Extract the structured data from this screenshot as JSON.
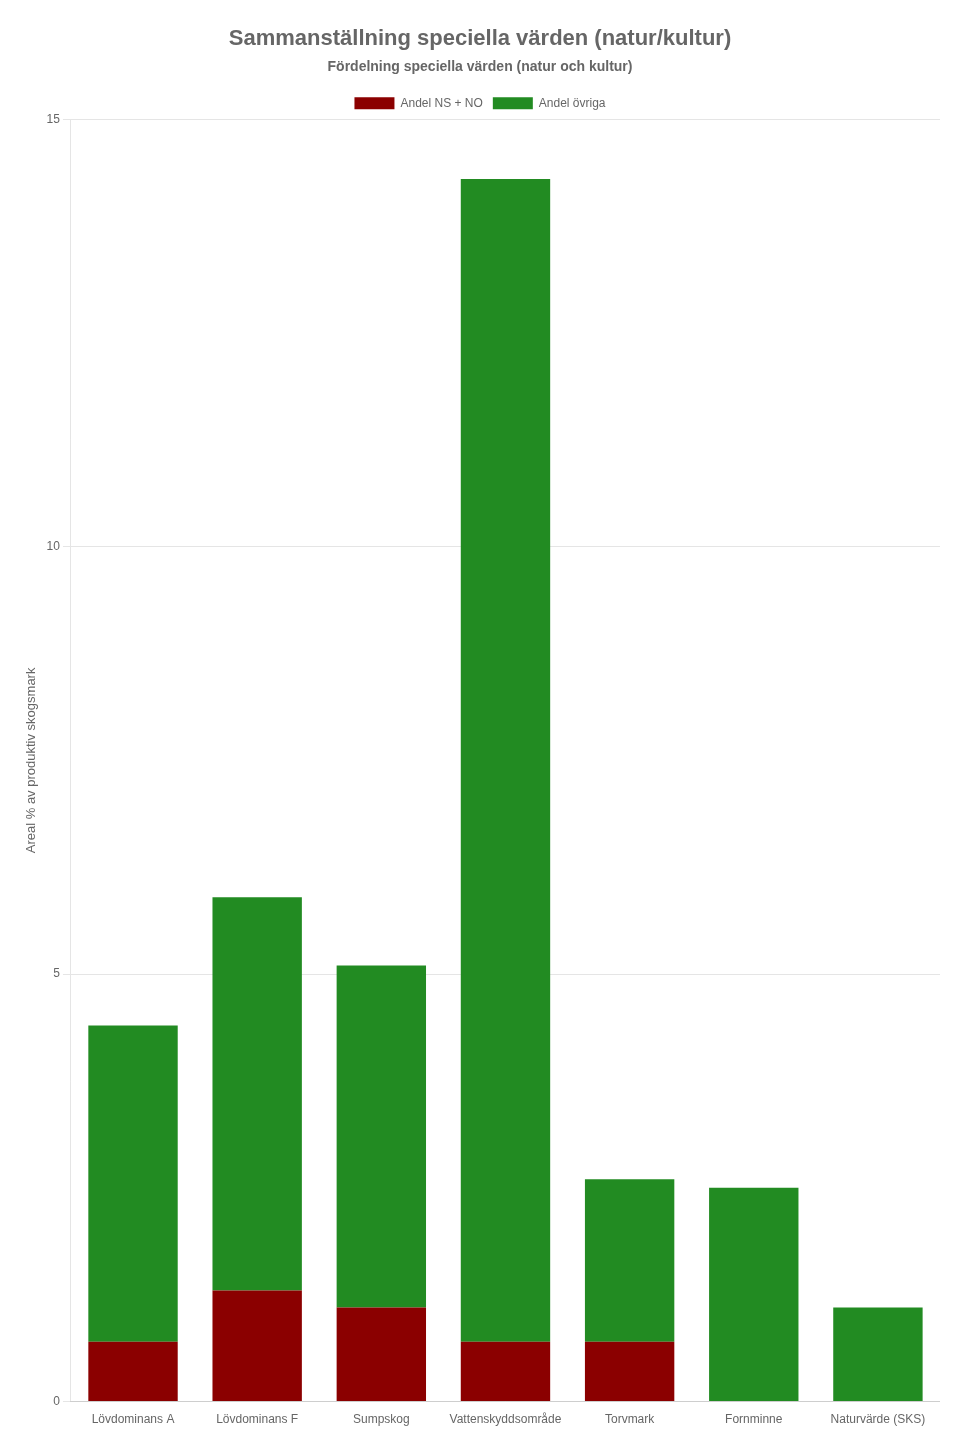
{
  "chart_data": {
    "type": "bar",
    "title": "Sammanställning speciella värden (natur/kultur)",
    "subtitle": "Fördelning speciella värden (natur och kultur)",
    "y_label": "Areal % av produktiv skogsmark",
    "categories": [
      "Lövdominans A",
      "Lövdominans F",
      "Sumpskog",
      "Vattenskyddsområde",
      "Torvmark",
      "Fornminne",
      "Naturvärde (SKS)"
    ],
    "series": [
      {
        "name": "Andel NS + NO",
        "color": "#8B0000",
        "values": [
          0.7,
          1.3,
          1.1,
          0.7,
          0.7,
          0.0,
          0.0
        ]
      },
      {
        "name": "Andel övriga",
        "color": "#228B22",
        "values": [
          3.7,
          4.6,
          4.0,
          13.6,
          1.9,
          2.5,
          1.1
        ]
      }
    ],
    "stacked": true,
    "ylim": [
      0,
      15
    ],
    "yticks": [
      0,
      5,
      10,
      15
    ],
    "grid": true,
    "legend": "top"
  }
}
